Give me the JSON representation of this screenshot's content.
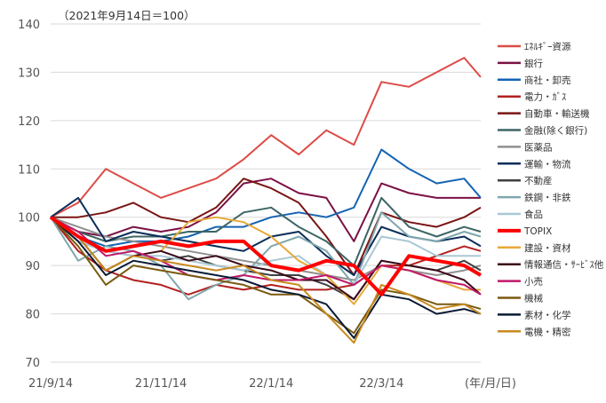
{
  "chart_data": {
    "type": "line",
    "title": "",
    "note": "（2021年9月14日＝100）",
    "xlabel": "(年/月/日)",
    "ylabel": "",
    "ylim": [
      70,
      140
    ],
    "yticks": [
      140,
      130,
      120,
      110,
      100,
      90,
      80,
      70
    ],
    "xticks": [
      {
        "label": "21/9/14",
        "month": 0
      },
      {
        "label": "21/11/14",
        "month": 2
      },
      {
        "label": "22/1/14",
        "month": 4
      },
      {
        "label": "22/3/14",
        "month": 6
      }
    ],
    "x_months_since_start": [
      0,
      0.5,
      1,
      1.5,
      2,
      2.5,
      3,
      3.5,
      4,
      4.5,
      5,
      5.5,
      6,
      6.5,
      7,
      7.5,
      7.8
    ],
    "legend_position": "right",
    "grid": true,
    "series": [
      {
        "name": "ｴﾈﾙｷﾞｰ資源",
        "color": "#dd4b46",
        "values": [
          100,
          103,
          110,
          107,
          104,
          106,
          108,
          112,
          117,
          113,
          118,
          115,
          128,
          127,
          130,
          133,
          129
        ]
      },
      {
        "name": "銀行",
        "color": "#7b1144",
        "values": [
          100,
          97,
          96,
          98,
          97,
          98,
          101,
          107,
          108,
          105,
          104,
          95,
          107,
          105,
          104,
          104,
          104
        ]
      },
      {
        "name": "商社・卸売",
        "color": "#1563b3",
        "values": [
          100,
          96,
          94,
          95,
          95,
          96,
          98,
          98,
          100,
          101,
          100,
          102,
          114,
          110,
          107,
          108,
          104
        ]
      },
      {
        "name": "電力・ｶﾞｽ",
        "color": "#b3201f",
        "values": [
          100,
          93,
          89,
          87,
          86,
          84,
          86,
          85,
          86,
          85,
          85,
          86,
          90,
          90,
          92,
          94,
          93
        ]
      },
      {
        "name": "自動車・輸送機",
        "color": "#7a1515",
        "values": [
          100,
          100,
          101,
          103,
          100,
          99,
          102,
          108,
          106,
          103,
          96,
          88,
          101,
          99,
          98,
          100,
          102
        ]
      },
      {
        "name": "金融(除く銀行)",
        "color": "#3d6565",
        "values": [
          100,
          97,
          95,
          96,
          96,
          97,
          97,
          101,
          102,
          98,
          95,
          90,
          104,
          98,
          96,
          98,
          97
        ]
      },
      {
        "name": "医薬品",
        "color": "#909090",
        "values": [
          100,
          98,
          96,
          95,
          94,
          93,
          92,
          91,
          90,
          89,
          88,
          87,
          90,
          89,
          88,
          89,
          90
        ]
      },
      {
        "name": "運輸・物流",
        "color": "#0b2d5a",
        "values": [
          100,
          104,
          95,
          97,
          96,
          95,
          94,
          93,
          96,
          97,
          92,
          88,
          98,
          96,
          95,
          96,
          94
        ]
      },
      {
        "name": "不動産",
        "color": "#404040",
        "values": [
          100,
          95,
          93,
          92,
          91,
          92,
          90,
          89,
          88,
          88,
          86,
          83,
          91,
          90,
          89,
          91,
          89
        ]
      },
      {
        "name": "鉄鋼・非鉄",
        "color": "#7fa7ad",
        "values": [
          100,
          91,
          94,
          93,
          90,
          83,
          86,
          88,
          94,
          96,
          93,
          86,
          101,
          96,
          95,
          97,
          96
        ]
      },
      {
        "name": "食品",
        "color": "#a8c8d5",
        "values": [
          100,
          95,
          93,
          92,
          92,
          91,
          90,
          89,
          91,
          92,
          88,
          86,
          96,
          95,
          92,
          92,
          92
        ]
      },
      {
        "name": "TOPIX",
        "color": "#ff0000",
        "values": [
          100,
          96,
          93,
          94,
          95,
          94,
          95,
          95,
          90,
          89,
          91,
          90,
          84,
          92,
          91,
          90,
          88
        ]
      },
      {
        "name": "建設・資材",
        "color": "#e8a838",
        "values": [
          100,
          96,
          89,
          92,
          93,
          99,
          100,
          99,
          96,
          91,
          88,
          82,
          90,
          89,
          87,
          85,
          85
        ]
      },
      {
        "name": "情報通信・ｻｰﾋﾞｽ他",
        "color": "#3a0a1a",
        "values": [
          100,
          96,
          89,
          92,
          93,
          91,
          92,
          90,
          89,
          87,
          87,
          83,
          91,
          90,
          89,
          87,
          84
        ]
      },
      {
        "name": "小売",
        "color": "#c0186a",
        "values": [
          100,
          97,
          92,
          93,
          91,
          88,
          87,
          88,
          87,
          87,
          88,
          86,
          90,
          89,
          87,
          86,
          84
        ]
      },
      {
        "name": "機械",
        "color": "#7a5a10",
        "values": [
          100,
          94,
          86,
          90,
          89,
          88,
          87,
          86,
          84,
          84,
          80,
          76,
          85,
          84,
          82,
          82,
          81
        ]
      },
      {
        "name": "素材・化学",
        "color": "#0a1a35",
        "values": [
          100,
          95,
          88,
          91,
          90,
          89,
          88,
          87,
          85,
          84,
          82,
          75,
          84,
          83,
          80,
          81,
          80
        ]
      },
      {
        "name": "電機・精密",
        "color": "#c88a20",
        "values": [
          100,
          96,
          89,
          92,
          91,
          90,
          89,
          90,
          87,
          86,
          80,
          74,
          86,
          84,
          81,
          82,
          80
        ]
      }
    ]
  }
}
